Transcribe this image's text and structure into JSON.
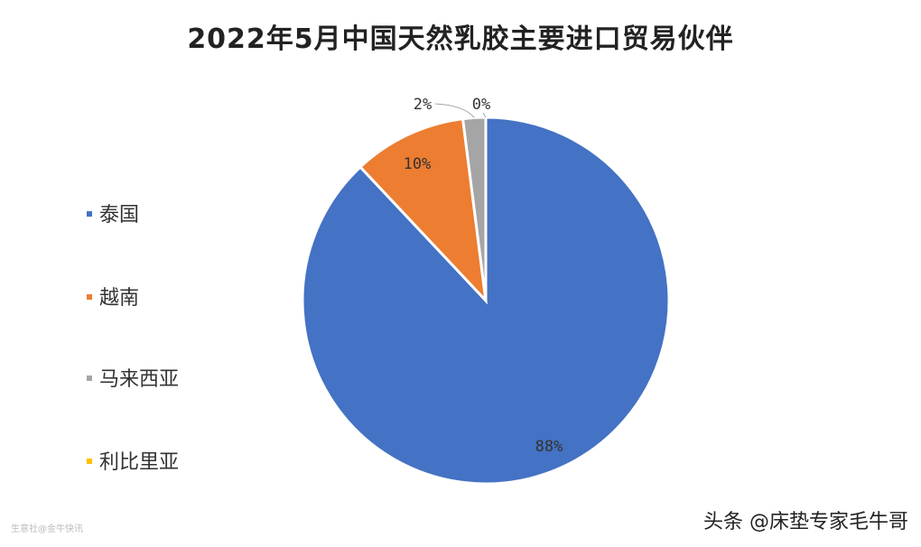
{
  "chart_data": {
    "type": "pie",
    "title": "2022年5月中国天然乳胶主要进口贸易伙伴",
    "categories": [
      "泰国",
      "越南",
      "马来西亚",
      "利比里亚"
    ],
    "values": [
      88,
      10,
      2,
      0
    ],
    "labels": [
      "88%",
      "10%",
      "2%",
      "0%"
    ],
    "colors": [
      "#4472C4",
      "#ED7D31",
      "#A5A5A5",
      "#FFC000"
    ],
    "legend_position": "left"
  },
  "watermarks": {
    "bottom_right": "头条 @床垫专家毛牛哥",
    "bottom_left": "生意社@金牛快讯"
  }
}
